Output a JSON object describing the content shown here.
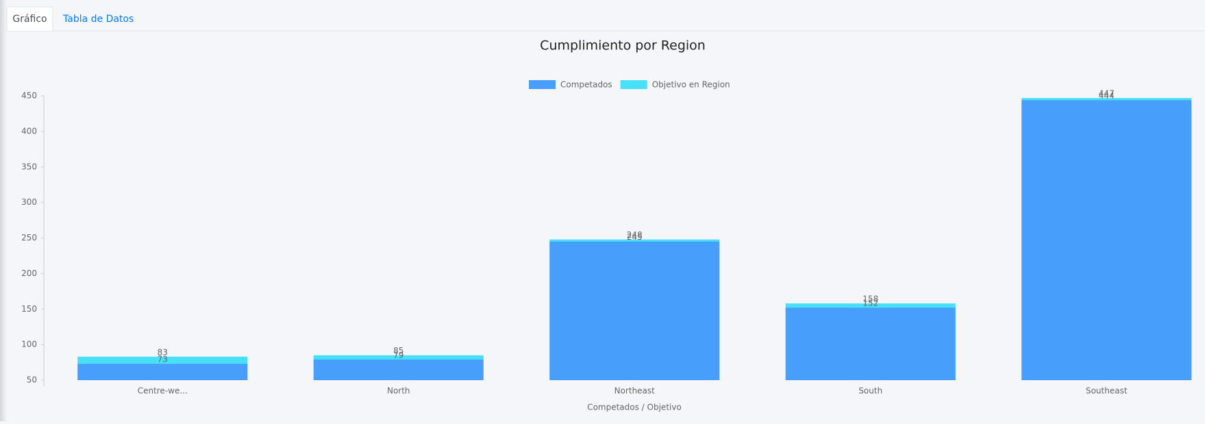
{
  "tabs": [
    "Gráfico",
    "Tabla de Datos"
  ],
  "chart_data": {
    "type": "bar",
    "title": "Cumplimiento por Region",
    "x_label": "Competados / Objetivo",
    "categories": [
      "Centre-we...",
      "North",
      "Northeast",
      "South",
      "Southeast"
    ],
    "series": [
      {
        "name": "Competados",
        "color": "#489ffb",
        "values": [
          73,
          79,
          245,
          152,
          444
        ]
      },
      {
        "name": "Objetivo en Region",
        "color": "#48e0f7",
        "values": [
          83,
          85,
          248,
          158,
          447
        ]
      }
    ],
    "ylim": [
      50,
      450
    ],
    "yticks": [
      50,
      100,
      150,
      200,
      250,
      300,
      350,
      400,
      450
    ],
    "grid": false,
    "legend": "top"
  }
}
